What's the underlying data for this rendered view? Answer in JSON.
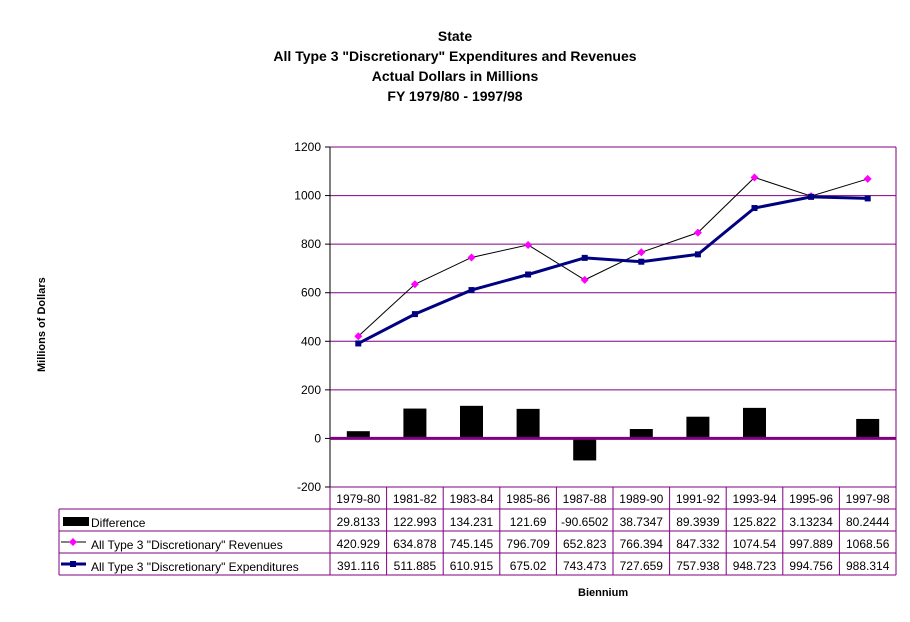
{
  "chart_data": {
    "type": "line",
    "title_lines": [
      "State",
      "All Type 3 \"Discretionary\" Expenditures and Revenues",
      "Actual Dollars in Millions",
      "FY 1979/80 - 1997/98"
    ],
    "ylabel": "Millions of Dollars",
    "xlabel": "Biennium",
    "ylim": [
      -200,
      1200
    ],
    "yticks": [
      -200,
      0,
      200,
      400,
      600,
      800,
      1000,
      1200
    ],
    "ytick_labels": [
      "-200",
      "0",
      "200",
      "400",
      "600",
      "800",
      "1000",
      "1200"
    ],
    "grid": true,
    "categories": [
      "1979-80",
      "1981-82",
      "1983-84",
      "1985-86",
      "1987-88",
      "1989-90",
      "1991-92",
      "1993-94",
      "1995-96",
      "1997-98"
    ],
    "series": [
      {
        "name": "Difference",
        "type": "bar",
        "color": "#000000",
        "values": [
          29.8133,
          122.993,
          134.231,
          121.69,
          -90.6502,
          38.7347,
          89.3939,
          125.822,
          3.13234,
          80.2444
        ],
        "labels": [
          "29.8133",
          "122.993",
          "134.231",
          "121.69",
          "-90.6502",
          "38.7347",
          "89.3939",
          "125.822",
          "3.13234",
          "80.2444"
        ]
      },
      {
        "name": "All Type 3 \"Discretionary\" Revenues",
        "type": "line",
        "color": "#ff00ff",
        "marker": "diamond",
        "values": [
          420.929,
          634.878,
          745.145,
          796.709,
          652.823,
          766.394,
          847.332,
          1074.54,
          997.889,
          1068.56
        ],
        "labels": [
          "420.929",
          "634.878",
          "745.145",
          "796.709",
          "652.823",
          "766.394",
          "847.332",
          "1074.54",
          "997.889",
          "1068.56"
        ]
      },
      {
        "name": "All Type 3 \"Discretionary\" Expenditures",
        "type": "line",
        "color": "#000080",
        "marker": "square",
        "values": [
          391.116,
          511.885,
          610.915,
          675.02,
          743.473,
          727.659,
          757.938,
          948.723,
          994.756,
          988.314
        ],
        "labels": [
          "391.116",
          "511.885",
          "610.915",
          "675.02",
          "743.473",
          "727.659",
          "757.938",
          "948.723",
          "994.756",
          "988.314"
        ]
      }
    ],
    "data_table": true,
    "colors": {
      "gridline": "#800080",
      "zero_line": "#800080",
      "table_border": "#800080"
    }
  }
}
